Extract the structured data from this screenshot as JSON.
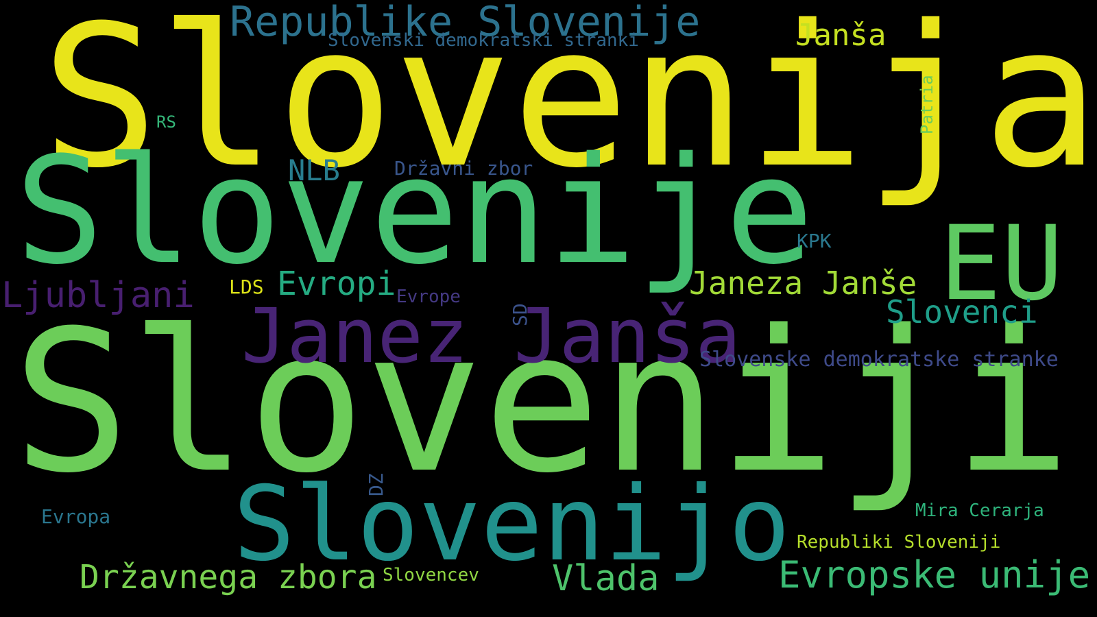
{
  "words": [
    {
      "text": "Slovenija",
      "color": "#e8e41a"
    },
    {
      "text": "Slovenije",
      "color": "#44bf70"
    },
    {
      "text": "Sloveniji",
      "color": "#6ccd59"
    },
    {
      "text": "Republike Slovenije",
      "color": "#2c728e"
    },
    {
      "text": "Janša",
      "color": "#c5e021"
    },
    {
      "text": "Slovenski demokratski stranki",
      "color": "#31688e"
    },
    {
      "text": "Patria",
      "color": "#6ccd59"
    },
    {
      "text": "RS",
      "color": "#35b779"
    },
    {
      "text": "NLB",
      "color": "#287d8e"
    },
    {
      "text": "Državni zbor",
      "color": "#39568c"
    },
    {
      "text": "EU",
      "color": "#5ec962"
    },
    {
      "text": "KPK",
      "color": "#2a788e"
    },
    {
      "text": "Ljubljani",
      "color": "#481f70"
    },
    {
      "text": "LDS",
      "color": "#dde318"
    },
    {
      "text": "Evropi",
      "color": "#25ab82"
    },
    {
      "text": "Evrope",
      "color": "#443983"
    },
    {
      "text": "SD",
      "color": "#3b528b"
    },
    {
      "text": "Janeza Janše",
      "color": "#a2da37"
    },
    {
      "text": "Slovenci",
      "color": "#1f9e89"
    },
    {
      "text": "Janez Janša",
      "color": "#482475"
    },
    {
      "text": "Slovenske demokratske stranke",
      "color": "#3e4a89"
    },
    {
      "text": "DZ",
      "color": "#38598c"
    },
    {
      "text": "Slovenijo",
      "color": "#21918c"
    },
    {
      "text": "Evropa",
      "color": "#2a768e"
    },
    {
      "text": "Mira Cerarja",
      "color": "#2eb37c"
    },
    {
      "text": "Republiki Sloveniji",
      "color": "#b5de2b"
    },
    {
      "text": "Državnega zbora",
      "color": "#7ad151"
    },
    {
      "text": "Slovencev",
      "color": "#90d743"
    },
    {
      "text": "Vlada",
      "color": "#4ec36b"
    },
    {
      "text": "Evropske unije",
      "color": "#3bbb75"
    }
  ]
}
